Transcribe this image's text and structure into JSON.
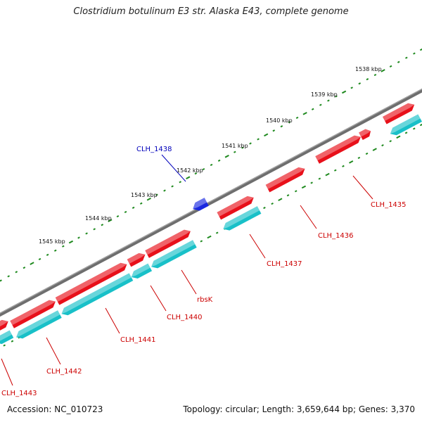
{
  "title": "Clostridium botulinum E3 str. Alaska E43, complete genome",
  "footer": {
    "accession": "Accession: NC_010723",
    "summary": "Topology: circular; Length: 3,659,644 bp; Genes: 3,370"
  },
  "colors": {
    "backbone": "#6e6e6e",
    "forward_gene": "#e8101a",
    "reverse_gene": "#18c0c8",
    "highlight_gene": "#1a28e0",
    "forward_label": "#cc0000",
    "highlight_label": "#0000bb",
    "tick_dot": "#1f8a1f"
  },
  "tick_labels": [
    "1538 kbp",
    "1539 kbp",
    "1540 kbp",
    "1541 kbp",
    "1542 kbp",
    "1543 kbp",
    "1544 kbp",
    "1545 kbp"
  ],
  "gene_labels": [
    {
      "name": "CLH_1438",
      "kind": "highlight"
    },
    {
      "name": "CLH_1435",
      "kind": "normal"
    },
    {
      "name": "CLH_1436",
      "kind": "normal"
    },
    {
      "name": "CLH_1437",
      "kind": "normal"
    },
    {
      "name": "rbsK",
      "kind": "normal"
    },
    {
      "name": "CLH_1440",
      "kind": "normal"
    },
    {
      "name": "CLH_1441",
      "kind": "normal"
    },
    {
      "name": "CLH_1442",
      "kind": "normal"
    },
    {
      "name": "CLH_1443",
      "kind": "normal"
    }
  ]
}
